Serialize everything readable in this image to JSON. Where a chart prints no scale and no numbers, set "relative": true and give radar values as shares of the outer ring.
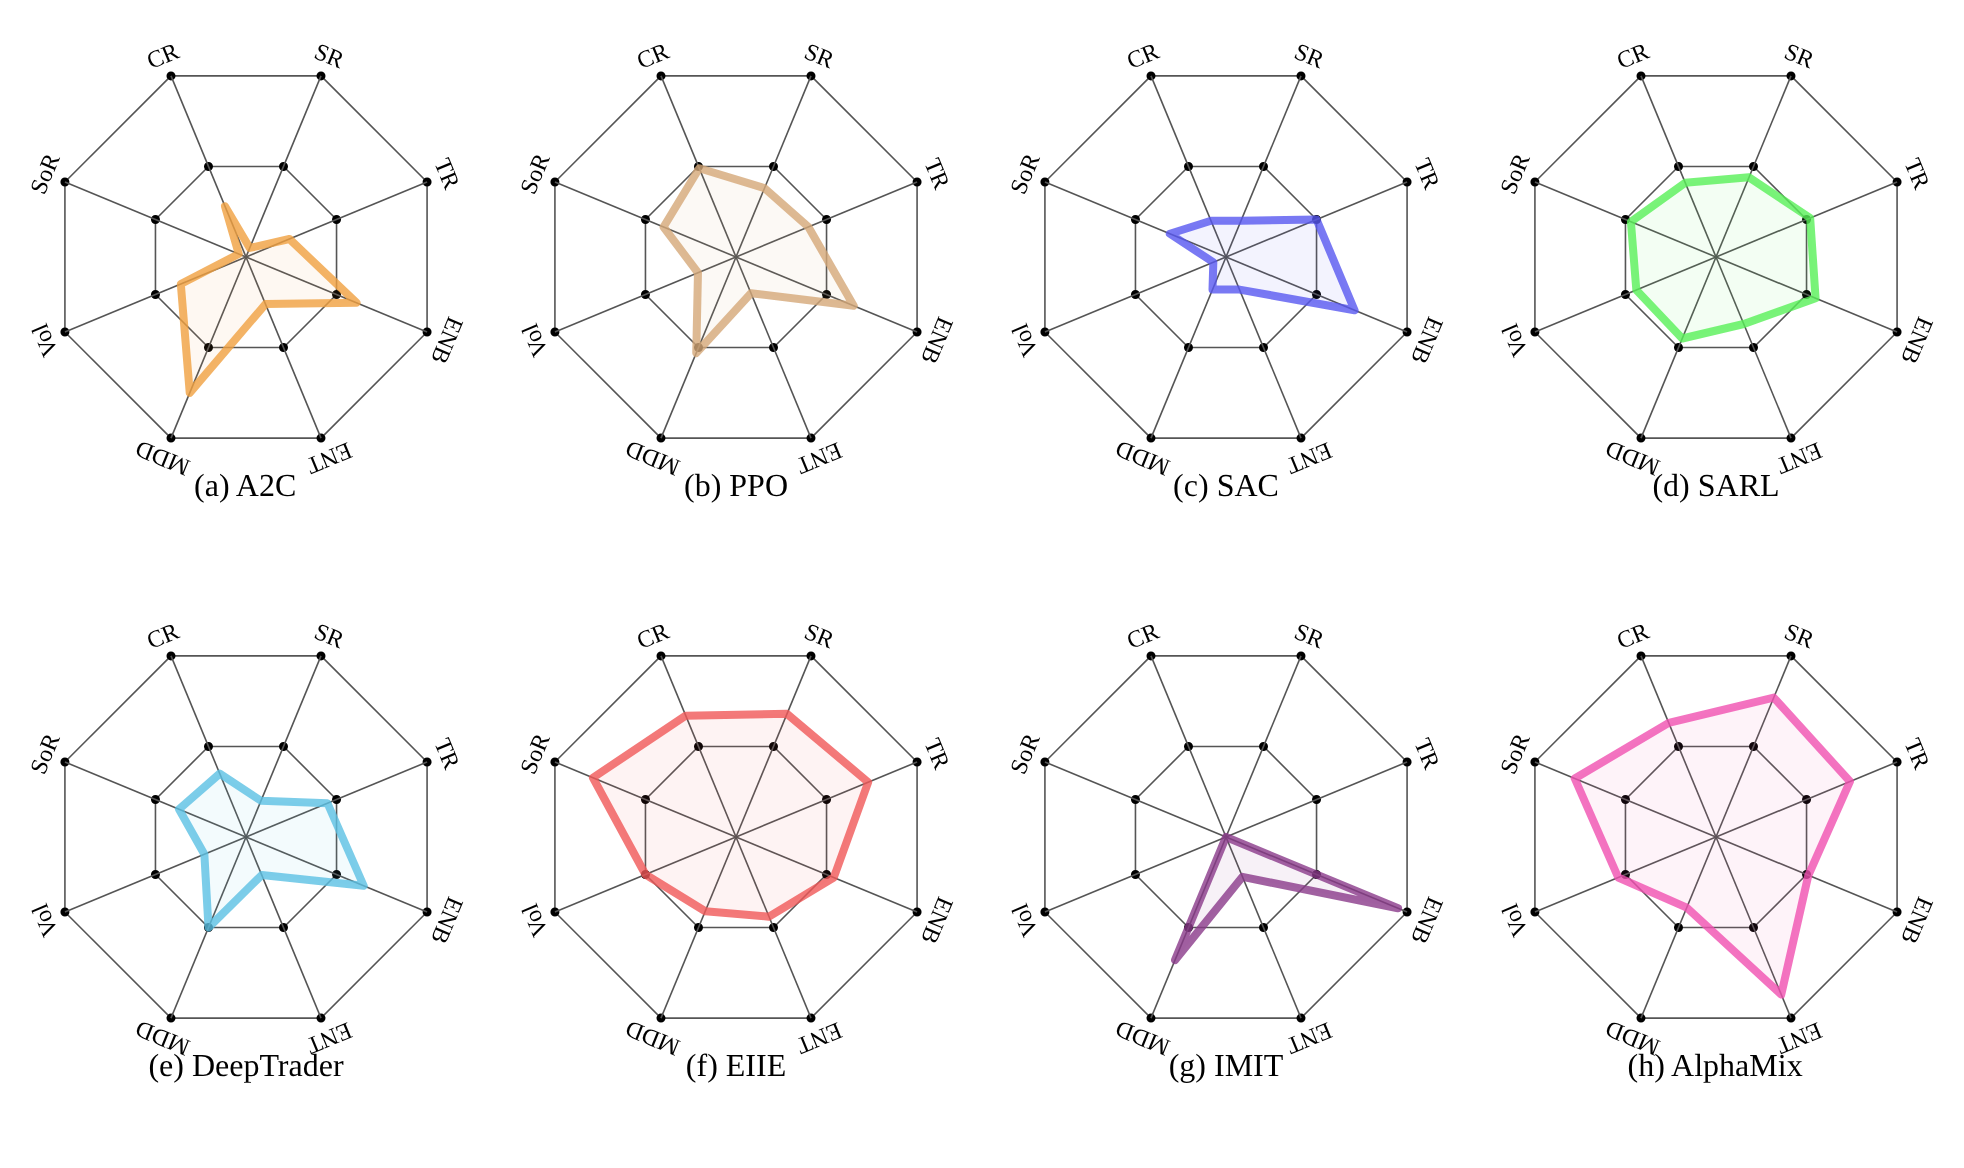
{
  "chart_data": [
    {
      "type": "radar",
      "title": "(a) A2C",
      "relative": true,
      "grid": true,
      "categories": [
        "SR",
        "TR",
        "ENB",
        "ENT",
        "MDD",
        "Vol",
        "SoR",
        "CR"
      ],
      "series": [
        {
          "color": "#f0a040",
          "values": [
            0.05,
            0.24,
            0.61,
            0.26,
            0.75,
            0.36,
            0.04,
            0.28
          ]
        }
      ]
    },
    {
      "type": "radar",
      "title": "(b) PPO",
      "relative": true,
      "grid": true,
      "categories": [
        "SR",
        "TR",
        "ENB",
        "ENT",
        "MDD",
        "Vol",
        "SoR",
        "CR"
      ],
      "series": [
        {
          "color": "#d4a878",
          "values": [
            0.38,
            0.4,
            0.65,
            0.2,
            0.53,
            0.21,
            0.4,
            0.49
          ]
        }
      ]
    },
    {
      "type": "radar",
      "title": "(c) SAC",
      "relative": true,
      "grid": true,
      "categories": [
        "SR",
        "TR",
        "ENB",
        "ENT",
        "MDD",
        "Vol",
        "SoR",
        "CR"
      ],
      "series": [
        {
          "color": "#5858f0",
          "values": [
            0.2,
            0.5,
            0.71,
            0.18,
            0.18,
            0.07,
            0.31,
            0.2
          ]
        }
      ]
    },
    {
      "type": "radar",
      "title": "(d) SARL",
      "relative": true,
      "grid": true,
      "categories": [
        "SR",
        "TR",
        "ENB",
        "ENT",
        "MDD",
        "Vol",
        "SoR",
        "CR"
      ],
      "series": [
        {
          "color": "#58f058",
          "values": [
            0.44,
            0.52,
            0.55,
            0.37,
            0.45,
            0.44,
            0.47,
            0.41
          ]
        }
      ]
    },
    {
      "type": "radar",
      "title": "(e) DeepTrader",
      "relative": true,
      "grid": true,
      "categories": [
        "SR",
        "TR",
        "ENB",
        "ENT",
        "MDD",
        "Vol",
        "SoR",
        "CR"
      ],
      "series": [
        {
          "color": "#5bc0e4",
          "values": [
            0.2,
            0.45,
            0.65,
            0.21,
            0.5,
            0.23,
            0.37,
            0.35
          ]
        }
      ]
    },
    {
      "type": "radar",
      "title": "(f) EIIE",
      "relative": true,
      "grid": true,
      "categories": [
        "SR",
        "TR",
        "ENB",
        "ENT",
        "MDD",
        "Vol",
        "SoR",
        "CR"
      ],
      "series": [
        {
          "color": "#f05858",
          "values": [
            0.68,
            0.73,
            0.54,
            0.44,
            0.41,
            0.5,
            0.79,
            0.67
          ]
        }
      ]
    },
    {
      "type": "radar",
      "title": "(g) IMIT",
      "relative": true,
      "grid": true,
      "categories": [
        "SR",
        "TR",
        "ENB",
        "ENT",
        "MDD",
        "Vol",
        "SoR",
        "CR"
      ],
      "series": [
        {
          "color": "#8a3a8a",
          "values": [
            0,
            0,
            0.95,
            0.22,
            0.68,
            0,
            0,
            0
          ]
        }
      ]
    },
    {
      "type": "radar",
      "title": "(h) AlphaMix",
      "relative": true,
      "grid": true,
      "categories": [
        "SR",
        "TR",
        "ENB",
        "ENT",
        "MDD",
        "Vol",
        "SoR",
        "CR"
      ],
      "series": [
        {
          "color": "#f050b0",
          "values": [
            0.77,
            0.74,
            0.51,
            0.87,
            0.39,
            0.54,
            0.78,
            0.63
          ]
        }
      ]
    }
  ]
}
